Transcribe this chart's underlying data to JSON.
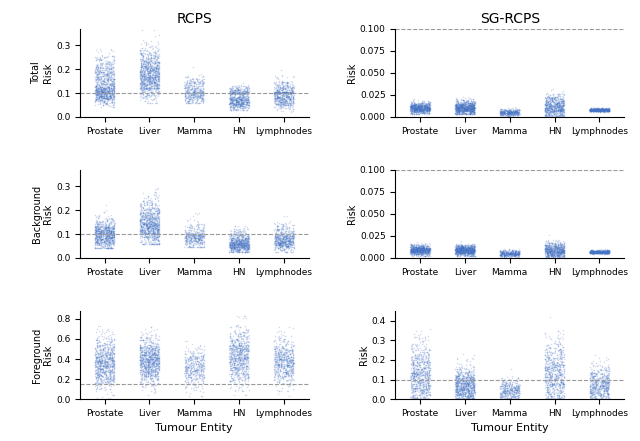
{
  "categories": [
    "Prostate",
    "Liver",
    "Mamma",
    "HN",
    "Lymphnodes"
  ],
  "col_titles": [
    "RCPS",
    "SG-RCPS"
  ],
  "ylabel_risk": "Risk",
  "xlabel": "Tumour Entity",
  "dot_color": "#4472C4",
  "dot_alpha": 0.25,
  "dot_size": 1.2,
  "hline_color": "#999999",
  "hline_style": "--",
  "hline_lw": 0.8,
  "panels": {
    "rcps_total": {
      "ylim": [
        0,
        0.37
      ],
      "yticks": [
        0.0,
        0.1,
        0.2,
        0.3
      ],
      "hline": 0.1,
      "groups": [
        {
          "mean": 0.1,
          "std": 0.025,
          "n": 600,
          "lo": 0.04,
          "hi": 0.17
        },
        {
          "mean": 0.18,
          "std": 0.04,
          "n": 400,
          "lo": 0.1,
          "hi": 0.285
        }
      ],
      "groups2": [
        {
          "mean": 0.145,
          "std": 0.04,
          "n": 550,
          "lo": 0.06,
          "hi": 0.27
        },
        {
          "mean": 0.21,
          "std": 0.05,
          "n": 450,
          "lo": 0.12,
          "hi": 0.365
        }
      ],
      "groups3": [
        {
          "mean": 0.09,
          "std": 0.02,
          "n": 250,
          "lo": 0.06,
          "hi": 0.145
        },
        {
          "mean": 0.13,
          "std": 0.025,
          "n": 180,
          "lo": 0.1,
          "hi": 0.21
        }
      ],
      "groups4": [
        {
          "mean": 0.065,
          "std": 0.02,
          "n": 500,
          "lo": 0.03,
          "hi": 0.1
        },
        {
          "mean": 0.105,
          "std": 0.015,
          "n": 250,
          "lo": 0.1,
          "hi": 0.145
        }
      ],
      "groups5": [
        {
          "mean": 0.075,
          "std": 0.02,
          "n": 400,
          "lo": 0.02,
          "hi": 0.105
        },
        {
          "mean": 0.115,
          "std": 0.025,
          "n": 250,
          "lo": 0.1,
          "hi": 0.21
        }
      ]
    },
    "sgrcps_total": {
      "ylim": [
        0,
        0.1
      ],
      "yticks": [
        0.0,
        0.025,
        0.05,
        0.075,
        0.1
      ],
      "hline": 0.1,
      "gmeans": [
        0.01,
        0.01,
        0.005,
        0.01,
        0.008
      ],
      "gstds": [
        0.003,
        0.004,
        0.002,
        0.008,
        0.001
      ],
      "gn": [
        800,
        900,
        400,
        750,
        600
      ],
      "glo": [
        0.003,
        0.003,
        0.001,
        0.0,
        0.005
      ],
      "ghi": [
        0.022,
        0.022,
        0.012,
        0.051,
        0.012
      ]
    },
    "rcps_bg": {
      "ylim": [
        0,
        0.37
      ],
      "yticks": [
        0.0,
        0.1,
        0.2,
        0.3
      ],
      "hline": 0.1,
      "gmeans": [
        0.1,
        0.155,
        0.1,
        0.075,
        0.09
      ],
      "gstds": [
        0.038,
        0.058,
        0.032,
        0.025,
        0.032
      ],
      "gn": [
        800,
        900,
        400,
        750,
        600
      ],
      "glo": [
        0.04,
        0.06,
        0.045,
        0.025,
        0.025
      ],
      "ghi": [
        0.285,
        0.365,
        0.19,
        0.135,
        0.205
      ]
    },
    "sgrcps_bg": {
      "ylim": [
        0,
        0.1
      ],
      "yticks": [
        0.0,
        0.025,
        0.05,
        0.075,
        0.1
      ],
      "hline": 0.1,
      "gmeans": [
        0.009,
        0.009,
        0.005,
        0.008,
        0.007
      ],
      "gstds": [
        0.003,
        0.003,
        0.002,
        0.005,
        0.001
      ],
      "gn": [
        800,
        900,
        400,
        750,
        600
      ],
      "glo": [
        0.002,
        0.002,
        0.001,
        0.0,
        0.004
      ],
      "ghi": [
        0.02,
        0.021,
        0.01,
        0.051,
        0.01
      ]
    },
    "rcps_fg": {
      "ylim": [
        0,
        0.88
      ],
      "yticks": [
        0.0,
        0.2,
        0.4,
        0.6,
        0.8
      ],
      "hline": 0.15,
      "gmeans": [
        0.35,
        0.38,
        0.32,
        0.42,
        0.38
      ],
      "gstds": [
        0.13,
        0.12,
        0.1,
        0.14,
        0.12
      ],
      "gn": [
        800,
        900,
        400,
        750,
        600
      ],
      "glo": [
        0.01,
        0.04,
        0.03,
        0.04,
        0.03
      ],
      "ghi": [
        0.73,
        0.72,
        0.58,
        0.83,
        0.72
      ]
    },
    "sgrcps_fg": {
      "ylim": [
        0,
        0.45
      ],
      "yticks": [
        0.0,
        0.1,
        0.2,
        0.3,
        0.4
      ],
      "hline": 0.1,
      "gmeans": [
        0.12,
        0.06,
        0.04,
        0.12,
        0.07
      ],
      "gstds": [
        0.09,
        0.05,
        0.03,
        0.09,
        0.05
      ],
      "gn": [
        800,
        900,
        400,
        750,
        600
      ],
      "glo": [
        0.0,
        0.0,
        0.0,
        0.0,
        0.0
      ],
      "ghi": [
        0.38,
        0.23,
        0.21,
        0.42,
        0.25
      ]
    }
  },
  "left_ylabels": [
    "Total\nRisk",
    "Background\nRisk",
    "Foreground\nRisk"
  ]
}
